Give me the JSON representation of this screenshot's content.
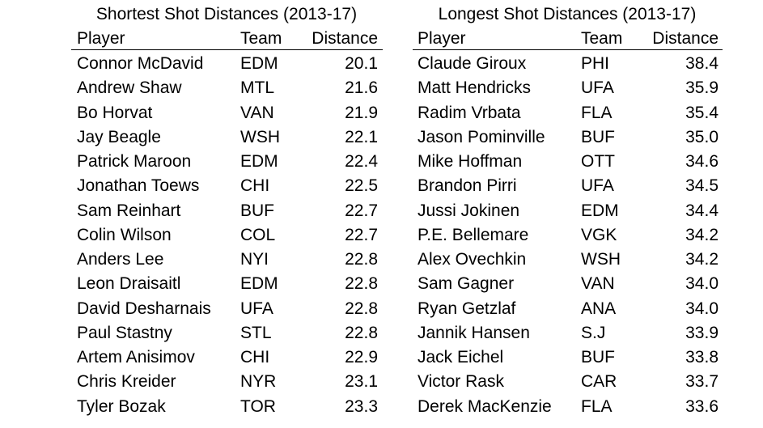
{
  "tables": [
    {
      "title": "Shortest Shot Distances (2013-17)",
      "header": [
        "Player",
        "Team",
        "Distance"
      ],
      "rows": [
        [
          "Connor McDavid",
          "EDM",
          "20.1"
        ],
        [
          "Andrew Shaw",
          "MTL",
          "21.6"
        ],
        [
          "Bo Horvat",
          "VAN",
          "21.9"
        ],
        [
          "Jay Beagle",
          "WSH",
          "22.1"
        ],
        [
          "Patrick Maroon",
          "EDM",
          "22.4"
        ],
        [
          "Jonathan Toews",
          "CHI",
          "22.5"
        ],
        [
          "Sam Reinhart",
          "BUF",
          "22.7"
        ],
        [
          "Colin Wilson",
          "COL",
          "22.7"
        ],
        [
          "Anders Lee",
          "NYI",
          "22.8"
        ],
        [
          "Leon Draisaitl",
          "EDM",
          "22.8"
        ],
        [
          "David Desharnais",
          "UFA",
          "22.8"
        ],
        [
          "Paul Stastny",
          "STL",
          "22.8"
        ],
        [
          "Artem Anisimov",
          "CHI",
          "22.9"
        ],
        [
          "Chris Kreider",
          "NYR",
          "23.1"
        ],
        [
          "Tyler Bozak",
          "TOR",
          "23.3"
        ]
      ]
    },
    {
      "title": "Longest Shot Distances (2013-17)",
      "header": [
        "Player",
        "Team",
        "Distance"
      ],
      "rows": [
        [
          "Claude Giroux",
          "PHI",
          "38.4"
        ],
        [
          "Matt Hendricks",
          "UFA",
          "35.9"
        ],
        [
          "Radim Vrbata",
          "FLA",
          "35.4"
        ],
        [
          "Jason Pominville",
          "BUF",
          "35.0"
        ],
        [
          "Mike Hoffman",
          "OTT",
          "34.6"
        ],
        [
          "Brandon Pirri",
          "UFA",
          "34.5"
        ],
        [
          "Jussi Jokinen",
          "EDM",
          "34.4"
        ],
        [
          "P.E. Bellemare",
          "VGK",
          "34.2"
        ],
        [
          "Alex Ovechkin",
          "WSH",
          "34.2"
        ],
        [
          "Sam Gagner",
          "VAN",
          "34.0"
        ],
        [
          "Ryan Getzlaf",
          "ANA",
          "34.0"
        ],
        [
          "Jannik Hansen",
          "S.J",
          "33.9"
        ],
        [
          "Jack Eichel",
          "BUF",
          "33.8"
        ],
        [
          "Victor Rask",
          "CAR",
          "33.7"
        ],
        [
          "Derek MacKenzie",
          "FLA",
          "33.6"
        ]
      ]
    }
  ]
}
